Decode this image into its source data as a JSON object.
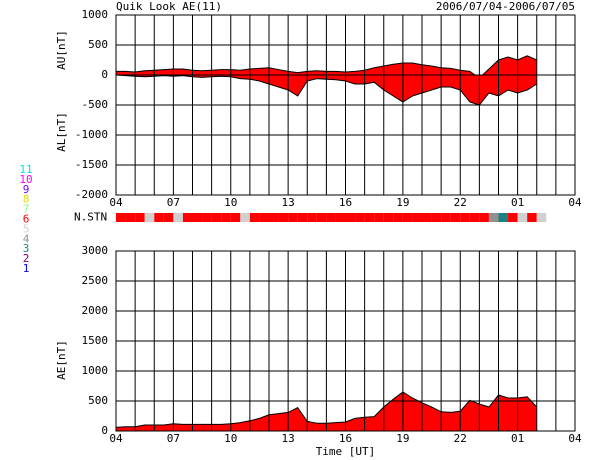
{
  "chart_data": [
    {
      "type": "area",
      "title": "Quik Look AE(11)",
      "subtitle": "2006/07/04-2006/07/05",
      "ylabel_top": "AU[nT]",
      "ylabel_bottom": "AL[nT]",
      "x": [
        0,
        0.5,
        1,
        1.5,
        2,
        2.5,
        3,
        3.5,
        4,
        4.5,
        5,
        5.5,
        6,
        6.5,
        7,
        7.5,
        8,
        8.5,
        9,
        9.5,
        10,
        10.5,
        11,
        11.5,
        12,
        12.5,
        13,
        13.5,
        14,
        14.5,
        15,
        15.5,
        16,
        16.5,
        17,
        17.5,
        18,
        18.5,
        19,
        19.5,
        20,
        20.5,
        21,
        21.5,
        22
      ],
      "series": [
        {
          "name": "AU",
          "color": "#ff0000",
          "values": [
            60,
            60,
            50,
            70,
            80,
            90,
            100,
            100,
            80,
            70,
            80,
            90,
            90,
            80,
            100,
            110,
            120,
            90,
            60,
            40,
            60,
            70,
            60,
            60,
            50,
            60,
            80,
            120,
            150,
            180,
            200,
            200,
            170,
            150,
            120,
            110,
            80,
            60,
            -50,
            100,
            250,
            300,
            250,
            320,
            250
          ]
        },
        {
          "name": "AL",
          "color": "#ff0000",
          "values": [
            0,
            -10,
            -20,
            -30,
            -20,
            -10,
            -20,
            -10,
            -30,
            -40,
            -30,
            -20,
            -30,
            -60,
            -70,
            -100,
            -150,
            -200,
            -250,
            -350,
            -100,
            -60,
            -70,
            -80,
            -100,
            -150,
            -150,
            -120,
            -250,
            -350,
            -450,
            -350,
            -300,
            -250,
            -200,
            -200,
            -250,
            -450,
            -500,
            -300,
            -350,
            -250,
            -300,
            -250,
            -150
          ]
        }
      ],
      "xlim": [
        0,
        24
      ],
      "xticks": [
        {
          "value": 0,
          "label": "04"
        },
        {
          "value": 3,
          "label": "07"
        },
        {
          "value": 6,
          "label": "10"
        },
        {
          "value": 9,
          "label": "13"
        },
        {
          "value": 12,
          "label": "16"
        },
        {
          "value": 15,
          "label": "19"
        },
        {
          "value": 18,
          "label": "22"
        },
        {
          "value": 21,
          "label": "01"
        },
        {
          "value": 24,
          "label": "04"
        }
      ],
      "xminorticks": [
        0,
        1,
        2,
        3,
        4,
        5,
        6,
        7,
        8,
        9,
        10,
        11,
        12,
        13,
        14,
        15,
        16,
        17,
        18,
        19,
        20,
        21,
        22,
        23,
        24
      ],
      "ylim": [
        -2000,
        1000
      ],
      "yticks": [
        -2000,
        -1500,
        -1000,
        -500,
        0,
        500,
        1000
      ],
      "grid": true
    },
    {
      "type": "strip",
      "ylabel": "N.STN",
      "x": [
        0,
        0.5,
        1,
        1.5,
        2,
        2.5,
        3,
        3.5,
        4,
        4.5,
        5,
        5.5,
        6,
        6.5,
        7,
        7.5,
        8,
        8.5,
        9,
        9.5,
        10,
        10.5,
        11,
        11.5,
        12,
        12.5,
        13,
        13.5,
        14,
        14.5,
        15,
        15.5,
        16,
        16.5,
        17,
        17.5,
        18,
        18.5,
        19,
        19.5,
        20,
        20.5,
        21,
        21.5,
        22
      ],
      "values": [
        6,
        6,
        6,
        5,
        6,
        6,
        5,
        6,
        6,
        6,
        6,
        6,
        6,
        5,
        6,
        6,
        6,
        6,
        6,
        6,
        6,
        6,
        6,
        6,
        6,
        6,
        6,
        6,
        6,
        6,
        6,
        6,
        6,
        6,
        6,
        6,
        6,
        6,
        6,
        4,
        3,
        6,
        5,
        6,
        5
      ],
      "xlim": [
        0,
        24
      ],
      "levels": [
        11,
        10,
        9,
        8,
        7,
        6,
        5,
        4,
        3,
        2,
        1
      ],
      "level_colors": [
        "#00e0e0",
        "#ff00ff",
        "#8000ff",
        "#e0e000",
        "#80ff80",
        "#ff0000",
        "#d0d0d0",
        "#909090",
        "#208080",
        "#800080",
        "#0000ff"
      ]
    },
    {
      "type": "area",
      "ylabel": "AE[nT]",
      "xlabel": "Time [UT]",
      "x": [
        0,
        0.5,
        1,
        1.5,
        2,
        2.5,
        3,
        3.5,
        4,
        4.5,
        5,
        5.5,
        6,
        6.5,
        7,
        7.5,
        8,
        8.5,
        9,
        9.5,
        10,
        10.5,
        11,
        11.5,
        12,
        12.5,
        13,
        13.5,
        14,
        14.5,
        15,
        15.5,
        16,
        16.5,
        17,
        17.5,
        18,
        18.5,
        19,
        19.5,
        20,
        20.5,
        21,
        21.5,
        22
      ],
      "series": [
        {
          "name": "AE",
          "color": "#ff0000",
          "values": [
            60,
            70,
            70,
            100,
            100,
            100,
            120,
            110,
            110,
            110,
            110,
            110,
            120,
            140,
            170,
            210,
            270,
            290,
            310,
            390,
            160,
            130,
            130,
            140,
            150,
            210,
            230,
            240,
            400,
            530,
            650,
            550,
            470,
            400,
            320,
            310,
            330,
            510,
            450,
            400,
            600,
            550,
            550,
            570,
            400
          ]
        }
      ],
      "xlim": [
        0,
        24
      ],
      "xticks": [
        {
          "value": 0,
          "label": "04"
        },
        {
          "value": 3,
          "label": "07"
        },
        {
          "value": 6,
          "label": "10"
        },
        {
          "value": 9,
          "label": "13"
        },
        {
          "value": 12,
          "label": "16"
        },
        {
          "value": 15,
          "label": "19"
        },
        {
          "value": 18,
          "label": "22"
        },
        {
          "value": 21,
          "label": "01"
        },
        {
          "value": 24,
          "label": "04"
        }
      ],
      "xminorticks": [
        0,
        1,
        2,
        3,
        4,
        5,
        6,
        7,
        8,
        9,
        10,
        11,
        12,
        13,
        14,
        15,
        16,
        17,
        18,
        19,
        20,
        21,
        22,
        23,
        24
      ],
      "ylim": [
        0,
        3000
      ],
      "yticks": [
        0,
        500,
        1000,
        1500,
        2000,
        2500,
        3000
      ],
      "grid": true
    }
  ]
}
